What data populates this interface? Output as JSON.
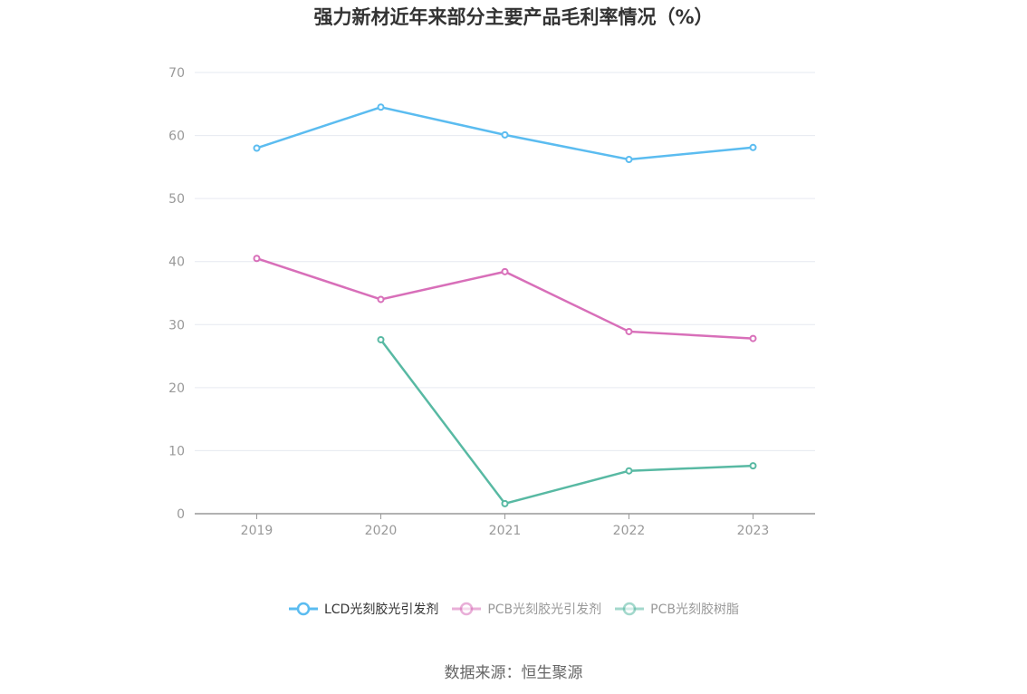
{
  "title": "强力新材近年来部分主要产品毛利率情况（%）",
  "source": "数据来源：恒生聚源",
  "chart_data": {
    "type": "line",
    "title": "强力新材近年来部分主要产品毛利率情况（%）",
    "categories": [
      "2019",
      "2020",
      "2021",
      "2022",
      "2023"
    ],
    "ylim": [
      0,
      70
    ],
    "yticks": [
      0,
      10,
      20,
      30,
      40,
      50,
      60,
      70
    ],
    "grid": true,
    "legend_position": "bottom",
    "series": [
      {
        "name": "LCD光刻胶光引发剂",
        "color": "#5bbcf0",
        "values": [
          58.0,
          64.5,
          60.1,
          56.2,
          58.1
        ]
      },
      {
        "name": "PCB光刻胶光引发剂",
        "color": "#d86fb9",
        "values": [
          40.5,
          34.0,
          38.4,
          28.9,
          27.8
        ]
      },
      {
        "name": "PCB光刻胶树脂",
        "color": "#58b9a3",
        "values": [
          null,
          27.6,
          1.6,
          6.8,
          7.6
        ]
      }
    ]
  }
}
